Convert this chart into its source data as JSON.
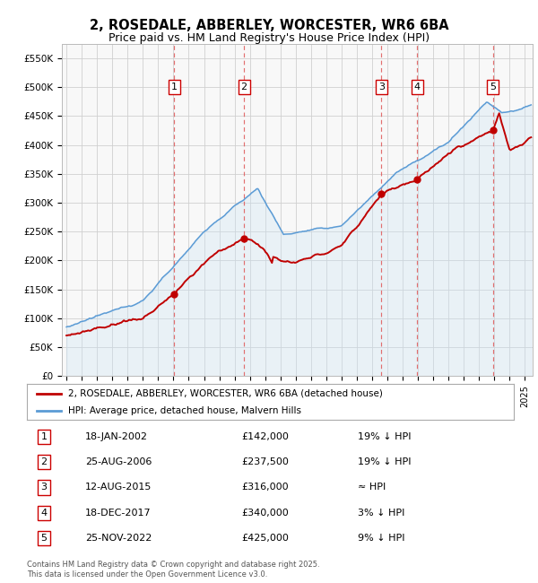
{
  "title": "2, ROSEDALE, ABBERLEY, WORCESTER, WR6 6BA",
  "subtitle": "Price paid vs. HM Land Registry's House Price Index (HPI)",
  "ylim": [
    0,
    575000
  ],
  "yticks": [
    0,
    50000,
    100000,
    150000,
    200000,
    250000,
    300000,
    350000,
    400000,
    450000,
    500000,
    550000
  ],
  "ytick_labels": [
    "£0",
    "£50K",
    "£100K",
    "£150K",
    "£200K",
    "£250K",
    "£300K",
    "£350K",
    "£400K",
    "£450K",
    "£500K",
    "£550K"
  ],
  "hpi_color": "#5b9bd5",
  "hpi_fill_color": "#cde4f5",
  "price_color": "#c00000",
  "vline_color": "#e06060",
  "grid_color": "#d0d0d0",
  "bg_color": "#ffffff",
  "plot_bg_color": "#f8f8f8",
  "sales": [
    {
      "date_num": 2002.05,
      "price": 142000,
      "label": "1"
    },
    {
      "date_num": 2006.62,
      "price": 237500,
      "label": "2"
    },
    {
      "date_num": 2015.61,
      "price": 316000,
      "label": "3"
    },
    {
      "date_num": 2017.96,
      "price": 340000,
      "label": "4"
    },
    {
      "date_num": 2022.9,
      "price": 425000,
      "label": "5"
    }
  ],
  "legend_entries": [
    {
      "label": "2, ROSEDALE, ABBERLEY, WORCESTER, WR6 6BA (detached house)",
      "color": "#c00000"
    },
    {
      "label": "HPI: Average price, detached house, Malvern Hills",
      "color": "#5b9bd5"
    }
  ],
  "table_rows": [
    {
      "num": "1",
      "date": "18-JAN-2002",
      "price": "£142,000",
      "hpi": "19% ↓ HPI"
    },
    {
      "num": "2",
      "date": "25-AUG-2006",
      "price": "£237,500",
      "hpi": "19% ↓ HPI"
    },
    {
      "num": "3",
      "date": "12-AUG-2015",
      "price": "£316,000",
      "hpi": "≈ HPI"
    },
    {
      "num": "4",
      "date": "18-DEC-2017",
      "price": "£340,000",
      "hpi": "3% ↓ HPI"
    },
    {
      "num": "5",
      "date": "25-NOV-2022",
      "price": "£425,000",
      "hpi": "9% ↓ HPI"
    }
  ],
  "footnote": "Contains HM Land Registry data © Crown copyright and database right 2025.\nThis data is licensed under the Open Government Licence v3.0.",
  "xmin": 1994.7,
  "xmax": 2025.5
}
